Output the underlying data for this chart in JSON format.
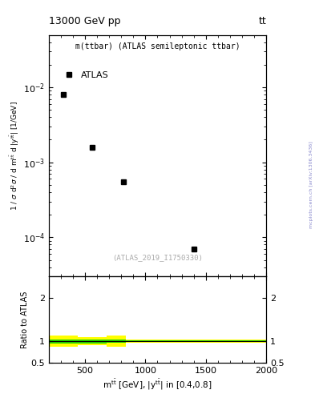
{
  "title_left": "13000 GeV pp",
  "title_right": "tt",
  "panel_title": "m(ttbar) (ATLAS semileptonic ttbar)",
  "atlas_label": "ATLAS",
  "data_points_x": [
    320,
    560,
    820,
    1400
  ],
  "data_points_y": [
    0.008,
    0.0016,
    0.00055,
    7e-05
  ],
  "data_color": "black",
  "ylabel_ratio": "Ratio to ATLAS",
  "xlim": [
    200,
    2000
  ],
  "ylim_main_log": [
    3e-05,
    0.05
  ],
  "ylim_ratio": [
    0.5,
    2.5
  ],
  "ratio_yticks": [
    0.5,
    1.0,
    2.0
  ],
  "ratio_yticklabels": [
    "0.5",
    "1",
    "2"
  ],
  "watermark": "(ATLAS_2019_I1750330)",
  "side_label": "mcplots.cern.ch [arXiv:1306.3436]",
  "yellow_band_segments": [
    {
      "x": [
        200,
        440
      ],
      "y_low": 0.87,
      "y_high": 1.13
    },
    {
      "x": [
        440,
        680
      ],
      "y_low": 0.91,
      "y_high": 1.09
    },
    {
      "x": [
        680,
        840
      ],
      "y_low": 0.87,
      "y_high": 1.13
    },
    {
      "x": [
        840,
        2000
      ],
      "y_low": 0.965,
      "y_high": 1.035
    }
  ],
  "green_band_segments": [
    {
      "x": [
        200,
        440
      ],
      "y_low": 0.955,
      "y_high": 1.045
    },
    {
      "x": [
        440,
        680
      ],
      "y_low": 0.955,
      "y_high": 1.045
    },
    {
      "x": [
        680,
        840
      ],
      "y_low": 0.965,
      "y_high": 1.035
    },
    {
      "x": [
        840,
        2000
      ],
      "y_low": 0.983,
      "y_high": 1.017
    }
  ],
  "ratio_line_y": 1.0,
  "bg_color": "#ffffff",
  "marker_size": 5,
  "marker_style": "s",
  "xticks": [
    200,
    500,
    1000,
    1500,
    2000
  ],
  "xticklabels": [
    "",
    "500",
    "1000",
    "1500",
    "2000"
  ]
}
